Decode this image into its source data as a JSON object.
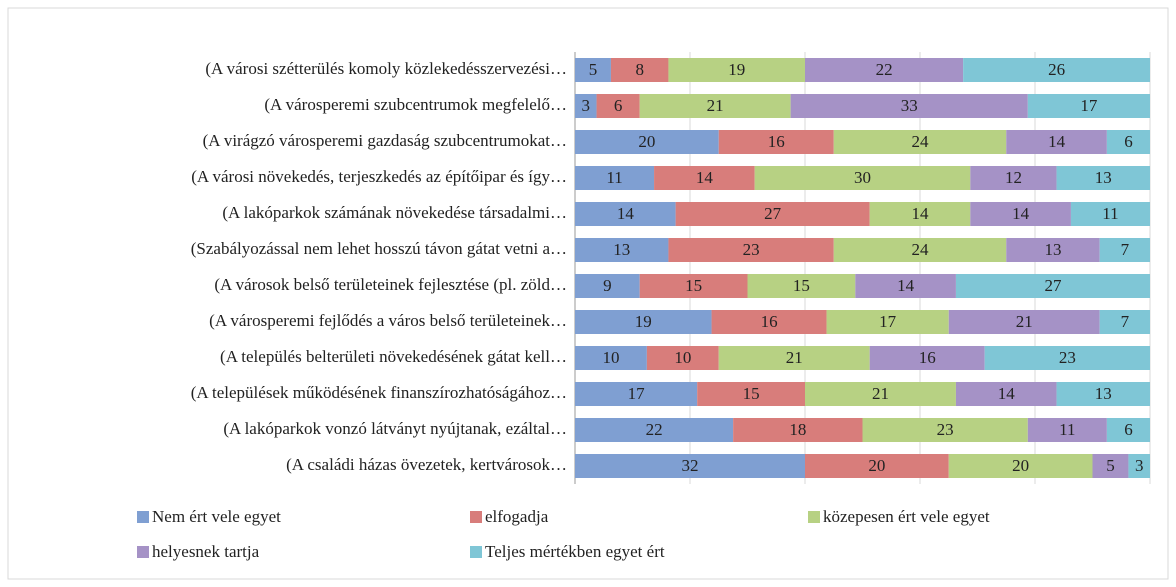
{
  "chart_data": {
    "type": "bar",
    "orientation": "horizontal",
    "stacked": true,
    "categories": [
      "(A városi szétterülés komoly közlekedésszervezési…",
      "(A városperemi szubcentrumok megfelelő…",
      "(A virágzó városperemi gazdaság szubcentrumokat…",
      "(A városi növekedés, terjeszkedés az építőipar és így…",
      "(A lakóparkok számának növekedése társadalmi…",
      "(Szabályozással nem lehet hosszú távon gátat vetni a…",
      "(A városok belső területeinek fejlesztése (pl. zöld…",
      "(A városperemi fejlődés a város belső területeinek…",
      "(A település belterületi növekedésének gátat kell…",
      "(A települések működésének finanszírozhatóságához…",
      "(A lakóparkok vonzó látványt nyújtanak, ezáltal…",
      "(A családi házas övezetek, kertvárosok…"
    ],
    "series": [
      {
        "name": "Nem ért vele egyet",
        "color": "#7f9fd2",
        "values": [
          5,
          3,
          20,
          11,
          14,
          13,
          9,
          19,
          10,
          17,
          22,
          32
        ]
      },
      {
        "name": "elfogadja",
        "color": "#d87d7b",
        "values": [
          8,
          6,
          16,
          14,
          27,
          23,
          15,
          16,
          10,
          15,
          18,
          20
        ]
      },
      {
        "name": "közepesen ért vele egyet",
        "color": "#b7d183",
        "values": [
          19,
          21,
          24,
          30,
          14,
          24,
          15,
          17,
          21,
          21,
          23,
          20
        ]
      },
      {
        "name": "helyesnek tartja",
        "color": "#a592c6",
        "values": [
          22,
          33,
          14,
          12,
          14,
          13,
          14,
          21,
          16,
          14,
          11,
          5
        ]
      },
      {
        "name": "Teljes mértékben egyet ért",
        "color": "#7fc6d6",
        "values": [
          26,
          17,
          6,
          13,
          11,
          7,
          27,
          7,
          23,
          13,
          6,
          3
        ]
      }
    ],
    "xlim": [
      0,
      80
    ],
    "xticks": [
      0,
      16,
      32,
      48,
      64,
      80
    ],
    "grid": true,
    "legend": "bottom"
  }
}
